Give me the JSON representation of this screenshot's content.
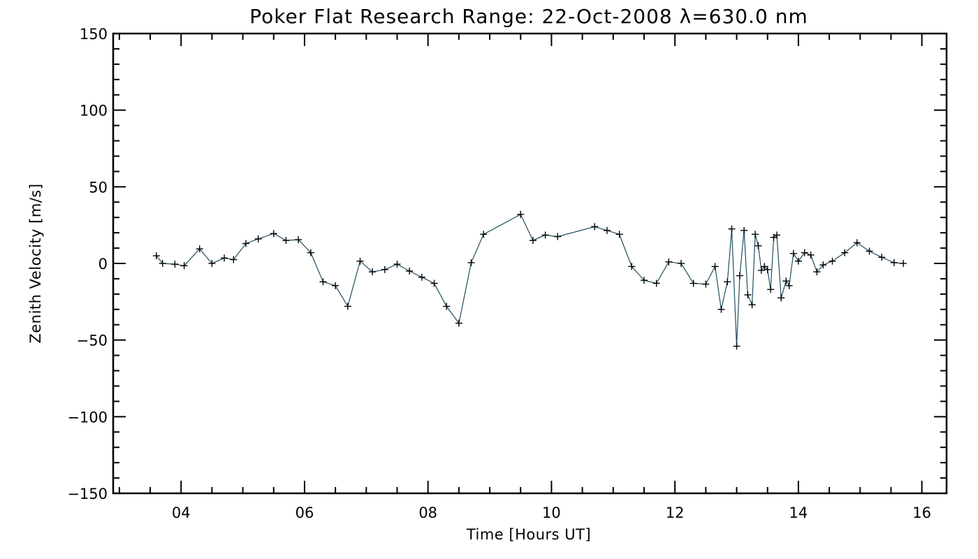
{
  "chart_data": {
    "type": "line",
    "title": "Poker Flat Research Range: 22-Oct-2008 λ=630.0 nm",
    "xlabel": "Time [Hours UT]",
    "ylabel": "Zenith Velocity [m/s]",
    "xlim": [
      2.9,
      16.4
    ],
    "ylim": [
      -150,
      150
    ],
    "xticks": [
      4,
      6,
      8,
      10,
      12,
      14,
      16
    ],
    "xtick_labels": [
      "04",
      "06",
      "08",
      "10",
      "12",
      "14",
      "16"
    ],
    "yticks": [
      150,
      100,
      50,
      0,
      -50,
      -100,
      -150
    ],
    "ytick_labels": [
      "150",
      "100",
      "50",
      "0",
      "−50",
      "−100",
      "−150"
    ],
    "grid": false,
    "line_color": "#1f4f5f",
    "marker": "plus",
    "series": [
      {
        "x": [
          3.6,
          3.7,
          3.9,
          4.05,
          4.3,
          4.5,
          4.7,
          4.85,
          5.05,
          5.25,
          5.5,
          5.7,
          5.9,
          6.1,
          6.3,
          6.5,
          6.7,
          6.9,
          7.1,
          7.3,
          7.5,
          7.7,
          7.9,
          8.1,
          8.3,
          8.5,
          8.7,
          8.9,
          9.5,
          9.7,
          9.9,
          10.1,
          10.7,
          10.9,
          11.1,
          11.3,
          11.5,
          11.7,
          11.9,
          12.1,
          12.3,
          12.5,
          12.65,
          12.75,
          12.85,
          12.92,
          13.0,
          13.05,
          13.12,
          13.18,
          13.25,
          13.3,
          13.35,
          13.4,
          13.45,
          13.5,
          13.55,
          13.6,
          13.65,
          13.72,
          13.8,
          13.85,
          13.92,
          14.0,
          14.1,
          14.2,
          14.3,
          14.4,
          14.55,
          14.75,
          14.95,
          15.15,
          15.35,
          15.55,
          15.7
        ],
        "y": [
          5,
          0,
          -0.5,
          -1.5,
          9.5,
          0,
          3.5,
          2.5,
          13,
          16,
          19.5,
          15,
          15.5,
          7,
          -12,
          -14.5,
          -28,
          1.5,
          -5.5,
          -4,
          -0.5,
          -5,
          -9,
          -13,
          -28,
          -39,
          0.5,
          19,
          32,
          15,
          18.5,
          17.5,
          24,
          21.5,
          19,
          -2,
          -11,
          -13,
          1,
          0,
          -13,
          -13.5,
          -2,
          -30,
          -12,
          22.5,
          -54,
          -8,
          21.5,
          -20.5,
          -27,
          19,
          11.5,
          -4.5,
          -2,
          -4,
          -17,
          17,
          18.5,
          -22.5,
          -11.5,
          -14.5,
          6.5,
          1.5,
          7,
          5.5,
          -5.5,
          -1,
          1.5,
          7,
          13.5,
          8,
          4,
          0.5,
          0
        ]
      }
    ]
  }
}
